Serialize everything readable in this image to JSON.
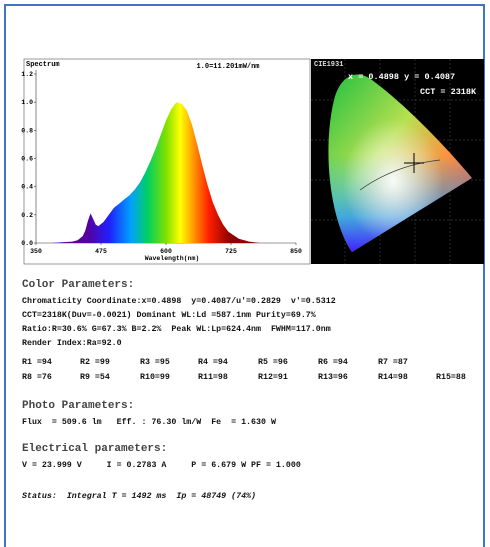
{
  "chart_data": {
    "type": "area",
    "title": "Spectrum",
    "subtitle": "1.0=11.201mW/nm",
    "x_label": "Wavelength(nm)",
    "x": [
      380,
      400,
      420,
      430,
      440,
      445,
      450,
      455,
      460,
      465,
      470,
      480,
      490,
      500,
      510,
      520,
      530,
      540,
      550,
      560,
      570,
      580,
      590,
      600,
      610,
      620,
      630,
      640,
      650,
      660,
      670,
      680,
      690,
      700,
      710,
      720,
      740,
      760,
      780,
      800
    ],
    "values": [
      0.0,
      0.005,
      0.01,
      0.02,
      0.05,
      0.09,
      0.16,
      0.21,
      0.17,
      0.13,
      0.12,
      0.15,
      0.2,
      0.25,
      0.28,
      0.31,
      0.34,
      0.38,
      0.43,
      0.5,
      0.58,
      0.67,
      0.77,
      0.87,
      0.95,
      1.0,
      0.99,
      0.94,
      0.84,
      0.7,
      0.55,
      0.41,
      0.29,
      0.2,
      0.13,
      0.08,
      0.03,
      0.01,
      0.0,
      0.0
    ],
    "xlim": [
      350,
      850
    ],
    "xticks": [
      350,
      475,
      600,
      725,
      850
    ],
    "ylim": [
      0,
      1.2
    ],
    "yticks": [
      {
        "value": 0,
        "label": "0.0"
      },
      0.2,
      0.4,
      0.6,
      0.8,
      {
        "value": 1,
        "label": "1.0"
      },
      1.2
    ]
  },
  "cie": {
    "title": "CIE1931",
    "coords": "x = 0.4898 y = 0.4087",
    "cct": "CCT = 2318K"
  },
  "color_parameters": {
    "heading": "Color Parameters:",
    "lines": [
      "Chromaticity Coordinate:x=0.4898  y=0.4087/u'=0.2829  v'=0.5312",
      "CCT=2318K(Duv=-0.0021) Dominant WL:Ld =587.1nm Purity=69.7%",
      "Ratio:R=30.6% G=67.3% B=2.2%  Peak WL:Lp=624.4nm  FWHM=117.0nm",
      "Render Index:Ra=92.0"
    ],
    "render_rows": [
      [
        "R1 =94",
        "R2 =99",
        "R3 =95",
        "R4 =94",
        "R5 =96",
        "R6 =94",
        "R7 =87"
      ],
      [
        "R8 =76",
        "R9 =54",
        "R10=99",
        "R11=98",
        "R12=91",
        "R13=96",
        "R14=98",
        "R15=88"
      ]
    ]
  },
  "photo_parameters": {
    "heading": "Photo Parameters:",
    "lines": [
      "Flux  = 509.6 lm   Eff. : 76.30 lm/W  Fe  = 1.630 W"
    ]
  },
  "electrical_parameters": {
    "heading": "Electrical parameters:",
    "lines": [
      "V = 23.999 V     I = 0.2783 A     P = 6.679 W PF = 1.000"
    ]
  },
  "status": "Status:  Integral T = 1492 ms  Ip = 48749 (74%)"
}
